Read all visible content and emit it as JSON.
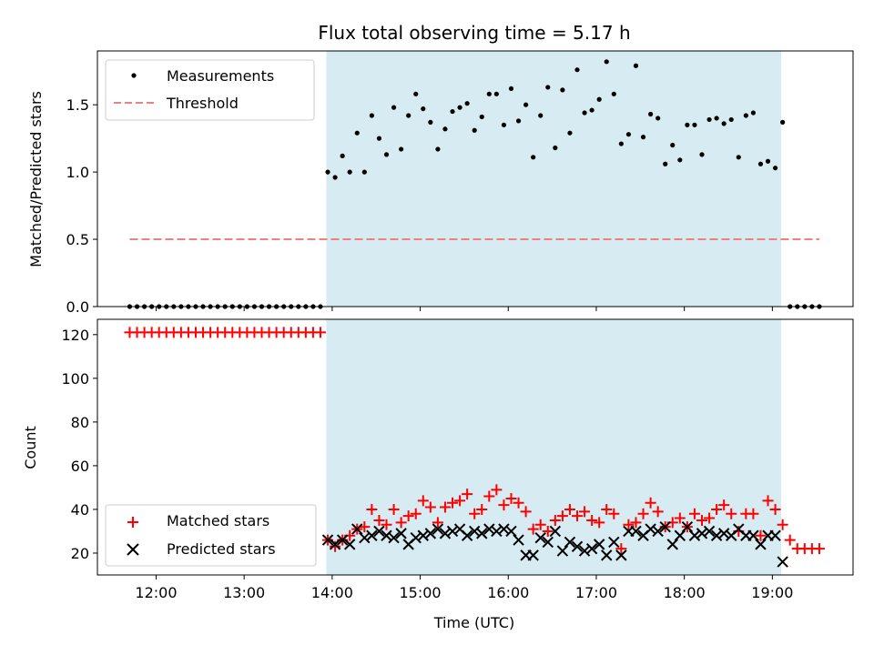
{
  "chart_data": [
    {
      "type": "scatter",
      "title": "Flux total observing time = 5.17 h",
      "ylabel": "Matched/Predicted stars",
      "xlabel": "",
      "ylim": [
        0,
        1.9
      ],
      "xlim": [
        "11:20",
        "19:55"
      ],
      "yticks": [
        "0.0",
        "0.5",
        "1.0",
        "1.5"
      ],
      "shaded_region": [
        "13:56",
        "19:06"
      ],
      "shade_color": "#add8e6",
      "legend": "top-left",
      "series": [
        {
          "name": "Measurements",
          "marker": "dot",
          "color": "#000000",
          "x": [
            "11:42",
            "11:47",
            "11:52",
            "11:57",
            "12:02",
            "12:07",
            "12:12",
            "12:17",
            "12:22",
            "12:27",
            "12:32",
            "12:37",
            "12:42",
            "12:47",
            "12:52",
            "12:57",
            "13:02",
            "13:07",
            "13:12",
            "13:17",
            "13:22",
            "13:27",
            "13:32",
            "13:37",
            "13:42",
            "13:47",
            "13:52",
            "13:57",
            "14:02",
            "14:07",
            "14:12",
            "14:17",
            "14:22",
            "14:27",
            "14:32",
            "14:37",
            "14:42",
            "14:47",
            "14:52",
            "14:57",
            "15:02",
            "15:07",
            "15:12",
            "15:17",
            "15:22",
            "15:27",
            "15:32",
            "15:37",
            "15:42",
            "15:47",
            "15:52",
            "15:57",
            "16:02",
            "16:07",
            "16:12",
            "16:17",
            "16:22",
            "16:27",
            "16:32",
            "16:37",
            "16:42",
            "16:47",
            "16:52",
            "16:57",
            "17:02",
            "17:07",
            "17:12",
            "17:17",
            "17:22",
            "17:27",
            "17:32",
            "17:37",
            "17:42",
            "17:47",
            "17:52",
            "17:57",
            "18:02",
            "18:07",
            "18:12",
            "18:17",
            "18:22",
            "18:27",
            "18:32",
            "18:37",
            "18:42",
            "18:47",
            "18:52",
            "18:57",
            "19:02",
            "19:07",
            "19:12",
            "19:17",
            "19:22",
            "19:27",
            "19:32"
          ],
          "y": [
            0,
            0,
            0,
            0,
            0,
            0,
            0,
            0,
            0,
            0,
            0,
            0,
            0,
            0,
            0,
            0,
            0,
            0,
            0,
            0,
            0,
            0,
            0,
            0,
            0,
            0,
            0,
            1.0,
            0.96,
            1.12,
            1.0,
            1.29,
            1.0,
            1.42,
            1.25,
            1.13,
            1.48,
            1.17,
            1.42,
            1.58,
            1.47,
            1.37,
            1.17,
            1.32,
            1.45,
            1.48,
            1.51,
            1.31,
            1.41,
            1.58,
            1.58,
            1.35,
            1.62,
            1.38,
            1.5,
            1.11,
            1.42,
            1.63,
            1.18,
            1.61,
            1.29,
            1.76,
            1.44,
            1.46,
            1.54,
            1.82,
            1.58,
            1.21,
            1.28,
            1.79,
            1.26,
            1.43,
            1.4,
            1.06,
            1.2,
            1.09,
            1.35,
            1.35,
            1.13,
            1.39,
            1.4,
            1.36,
            1.39,
            1.11,
            1.42,
            1.44,
            1.06,
            1.08,
            1.03,
            1.37,
            0,
            0,
            0,
            0,
            0
          ]
        },
        {
          "name": "Threshold",
          "marker": "dashed-line",
          "color": "#f08080",
          "x": [
            "11:42",
            "19:32"
          ],
          "y": [
            0.5,
            0.5
          ]
        }
      ]
    },
    {
      "type": "scatter",
      "title": "",
      "ylabel": "Count",
      "xlabel": "Time (UTC)",
      "ylim": [
        10,
        127
      ],
      "xlim": [
        "11:20",
        "19:55"
      ],
      "yticks": [
        "20",
        "40",
        "60",
        "80",
        "100",
        "120"
      ],
      "xticks": [
        "12:00",
        "13:00",
        "14:00",
        "15:00",
        "16:00",
        "17:00",
        "18:00",
        "19:00"
      ],
      "shaded_region": [
        "13:56",
        "19:06"
      ],
      "shade_color": "#add8e6",
      "legend": "bottom-left",
      "series": [
        {
          "name": "Matched stars",
          "marker": "plus",
          "color": "#ff0000",
          "x": [
            "11:42",
            "11:47",
            "11:52",
            "11:57",
            "12:02",
            "12:07",
            "12:12",
            "12:17",
            "12:22",
            "12:27",
            "12:32",
            "12:37",
            "12:42",
            "12:47",
            "12:52",
            "12:57",
            "13:02",
            "13:07",
            "13:12",
            "13:17",
            "13:22",
            "13:27",
            "13:32",
            "13:37",
            "13:42",
            "13:47",
            "13:52",
            "13:57",
            "14:02",
            "14:07",
            "14:12",
            "14:17",
            "14:22",
            "14:27",
            "14:32",
            "14:37",
            "14:42",
            "14:47",
            "14:52",
            "14:57",
            "15:02",
            "15:07",
            "15:12",
            "15:17",
            "15:22",
            "15:27",
            "15:32",
            "15:37",
            "15:42",
            "15:47",
            "15:52",
            "15:57",
            "16:02",
            "16:07",
            "16:12",
            "16:17",
            "16:22",
            "16:27",
            "16:32",
            "16:37",
            "16:42",
            "16:47",
            "16:52",
            "16:57",
            "17:02",
            "17:07",
            "17:12",
            "17:17",
            "17:22",
            "17:27",
            "17:32",
            "17:37",
            "17:42",
            "17:47",
            "17:52",
            "17:57",
            "18:02",
            "18:07",
            "18:12",
            "18:17",
            "18:22",
            "18:27",
            "18:32",
            "18:37",
            "18:42",
            "18:47",
            "18:52",
            "18:57",
            "19:02",
            "19:07",
            "19:12",
            "19:17",
            "19:22",
            "19:27",
            "19:32"
          ],
          "y": [
            121,
            121,
            121,
            121,
            121,
            121,
            121,
            121,
            121,
            121,
            121,
            121,
            121,
            121,
            121,
            121,
            121,
            121,
            121,
            121,
            121,
            121,
            121,
            121,
            121,
            121,
            121,
            26,
            23,
            26,
            28,
            31,
            32,
            40,
            35,
            33,
            40,
            34,
            37,
            38,
            44,
            41,
            34,
            41,
            43,
            44,
            47,
            38,
            40,
            46,
            49,
            42,
            45,
            43,
            39,
            31,
            33,
            30,
            35,
            37,
            40,
            37,
            39,
            35,
            34,
            40,
            38,
            22,
            33,
            34,
            38,
            43,
            39,
            32,
            34,
            36,
            32,
            38,
            35,
            36,
            40,
            42,
            38,
            30,
            38,
            38,
            28,
            44,
            40,
            33,
            26,
            22,
            22,
            22,
            22
          ]
        },
        {
          "name": "Predicted stars",
          "marker": "x",
          "color": "#000000",
          "x": [
            "13:57",
            "14:02",
            "14:07",
            "14:12",
            "14:17",
            "14:22",
            "14:27",
            "14:32",
            "14:37",
            "14:42",
            "14:47",
            "14:52",
            "14:57",
            "15:02",
            "15:07",
            "15:12",
            "15:17",
            "15:22",
            "15:27",
            "15:32",
            "15:37",
            "15:42",
            "15:47",
            "15:52",
            "15:57",
            "16:02",
            "16:07",
            "16:12",
            "16:17",
            "16:22",
            "16:27",
            "16:32",
            "16:37",
            "16:42",
            "16:47",
            "16:52",
            "16:57",
            "17:02",
            "17:07",
            "17:12",
            "17:17",
            "17:22",
            "17:27",
            "17:32",
            "17:37",
            "17:42",
            "17:47",
            "17:52",
            "17:57",
            "18:02",
            "18:07",
            "18:12",
            "18:17",
            "18:22",
            "18:27",
            "18:32",
            "18:37",
            "18:42",
            "18:47",
            "18:52",
            "18:57",
            "19:02",
            "19:07"
          ],
          "y": [
            26,
            24,
            26,
            24,
            31,
            27,
            28,
            30,
            28,
            27,
            29,
            24,
            27,
            28,
            29,
            31,
            29,
            30,
            31,
            28,
            30,
            29,
            31,
            30,
            31,
            30,
            26,
            19,
            19,
            27,
            25,
            30,
            21,
            25,
            23,
            21,
            22,
            24,
            19,
            25,
            19,
            30,
            30,
            28,
            31,
            30,
            32,
            24,
            28,
            32,
            28,
            29,
            30,
            28,
            29,
            28,
            31,
            28,
            28,
            24,
            28,
            28,
            16
          ]
        }
      ]
    }
  ]
}
